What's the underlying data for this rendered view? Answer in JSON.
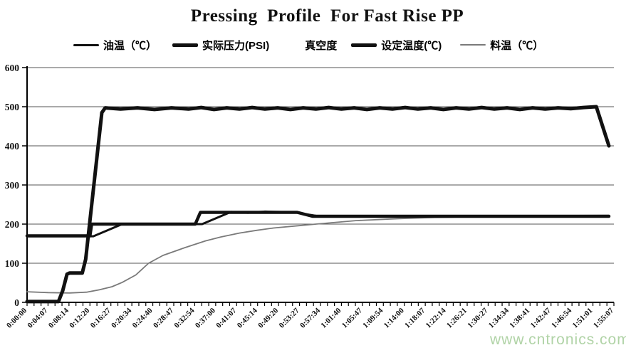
{
  "title": "Pressing  Profile  For Fast Rise PP",
  "watermark": "www.cntronics.com",
  "colors": {
    "background": "#ffffff",
    "axis": "#000000",
    "gridline": "#555555",
    "series_black": "#111111",
    "series_gray": "#7a7a7a",
    "watermark_green": "#a8cf9d"
  },
  "legend": {
    "items": [
      {
        "label": "油温（℃）",
        "swatch": "black-line-medium",
        "visible": true
      },
      {
        "label": "实际压力(PSI)",
        "swatch": "black-line-thick",
        "visible": true
      },
      {
        "label": "真空度",
        "swatch": "none",
        "visible": true
      },
      {
        "label": "设定温度(℃)",
        "swatch": "black-line-thick",
        "visible": true
      },
      {
        "label": "料温（℃）",
        "swatch": "gray-line-thin",
        "visible": true
      }
    ]
  },
  "chart_data": {
    "type": "line",
    "title": "Pressing  Profile  For Fast Rise PP",
    "grid": true,
    "legend_position": "top",
    "point_format": "[time_seconds, value]",
    "x_axis": {
      "labels": [
        "0:00:00",
        "0:04:07",
        "0:08:14",
        "0:12:20",
        "0:16:27",
        "0:20:34",
        "0:24:40",
        "0:28:47",
        "0:32:54",
        "0:37:00",
        "0:41:07",
        "0:45:14",
        "0:49:20",
        "0:53:27",
        "0:57:34",
        "1:01:40",
        "1:05:47",
        "1:09:54",
        "1:14:00",
        "1:18:07",
        "1:22:14",
        "1:26:21",
        "1:30:27",
        "1:34:34",
        "1:38:41",
        "1:42:47",
        "1:46:54",
        "1:51:01",
        "1:55:07"
      ],
      "domain_seconds": [
        0,
        6907
      ],
      "minor_ticks_per_label": 3,
      "label_rotation_deg": -45
    },
    "y_axis": {
      "min": 0,
      "max": 600,
      "tick_step": 100,
      "ticks": [
        0,
        100,
        200,
        300,
        400,
        500,
        600
      ]
    },
    "series": [
      {
        "id": "oil-temp",
        "name": "油温（℃）",
        "color": "#111111",
        "width": 3,
        "z": 2,
        "points": [
          [
            0,
            169
          ],
          [
            780,
            169
          ],
          [
            1120,
            200
          ],
          [
            2060,
            200
          ],
          [
            2400,
            231
          ],
          [
            2600,
            229
          ],
          [
            2800,
            232
          ],
          [
            3150,
            230
          ],
          [
            3400,
            221
          ],
          [
            4500,
            220
          ],
          [
            6848,
            221
          ]
        ]
      },
      {
        "id": "actual-pressure",
        "name": "实际压力(PSI)",
        "color": "#111111",
        "width": 5,
        "z": 4,
        "points": [
          [
            0,
            2
          ],
          [
            370,
            2
          ],
          [
            420,
            30
          ],
          [
            470,
            72
          ],
          [
            500,
            75
          ],
          [
            650,
            75
          ],
          [
            690,
            110
          ],
          [
            880,
            485
          ],
          [
            920,
            497
          ],
          [
            1100,
            494
          ],
          [
            1300,
            497
          ],
          [
            1500,
            493
          ],
          [
            1700,
            497
          ],
          [
            1900,
            494
          ],
          [
            2050,
            498
          ],
          [
            2200,
            493
          ],
          [
            2350,
            497
          ],
          [
            2500,
            494
          ],
          [
            2650,
            498
          ],
          [
            2800,
            494
          ],
          [
            2950,
            497
          ],
          [
            3100,
            493
          ],
          [
            3250,
            497
          ],
          [
            3400,
            494
          ],
          [
            3550,
            498
          ],
          [
            3700,
            494
          ],
          [
            3850,
            497
          ],
          [
            4000,
            493
          ],
          [
            4150,
            497
          ],
          [
            4300,
            494
          ],
          [
            4450,
            498
          ],
          [
            4600,
            494
          ],
          [
            4750,
            497
          ],
          [
            4900,
            493
          ],
          [
            5050,
            497
          ],
          [
            5200,
            494
          ],
          [
            5350,
            498
          ],
          [
            5500,
            494
          ],
          [
            5650,
            497
          ],
          [
            5800,
            493
          ],
          [
            5950,
            497
          ],
          [
            6100,
            494
          ],
          [
            6250,
            497
          ],
          [
            6400,
            495
          ],
          [
            6550,
            498
          ],
          [
            6700,
            500
          ],
          [
            6848,
            400
          ]
        ]
      },
      {
        "id": "vacuum",
        "name": "真空度",
        "color": "#ffffff",
        "width": 0,
        "z": 0,
        "visible": false,
        "points": []
      },
      {
        "id": "set-temp",
        "name": "设定温度(℃)",
        "color": "#111111",
        "width": 4.5,
        "z": 3,
        "points": [
          [
            0,
            170
          ],
          [
            740,
            170
          ],
          [
            760,
            200
          ],
          [
            1980,
            200
          ],
          [
            2040,
            230
          ],
          [
            3180,
            230
          ],
          [
            3360,
            220
          ],
          [
            6848,
            220
          ]
        ]
      },
      {
        "id": "material-temp",
        "name": "料温（℃）",
        "color": "#7a7a7a",
        "width": 1.8,
        "z": 1,
        "points": [
          [
            0,
            27
          ],
          [
            250,
            25
          ],
          [
            500,
            24
          ],
          [
            700,
            26
          ],
          [
            850,
            32
          ],
          [
            1000,
            40
          ],
          [
            1120,
            51
          ],
          [
            1280,
            70
          ],
          [
            1430,
            100
          ],
          [
            1600,
            120
          ],
          [
            1860,
            140
          ],
          [
            2100,
            157
          ],
          [
            2280,
            167
          ],
          [
            2500,
            177
          ],
          [
            2700,
            184
          ],
          [
            2900,
            190
          ],
          [
            3200,
            196
          ],
          [
            3400,
            200
          ],
          [
            3870,
            209
          ],
          [
            4380,
            214
          ],
          [
            4800,
            217
          ],
          [
            5300,
            219
          ],
          [
            5800,
            220
          ],
          [
            6848,
            220
          ]
        ]
      }
    ]
  }
}
